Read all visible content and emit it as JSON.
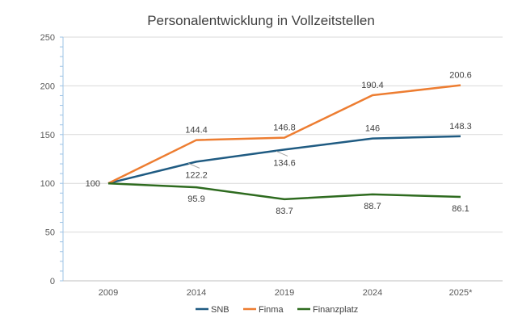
{
  "chart_data": {
    "type": "line",
    "title": "Personalentwicklung in Vollzeitstellen",
    "categories": [
      "2009",
      "2014",
      "2019",
      "2024",
      "2025*"
    ],
    "ylim": [
      0,
      250
    ],
    "yticks": [
      0,
      50,
      100,
      150,
      200,
      250
    ],
    "grid": true,
    "legend_position": "bottom",
    "series": [
      {
        "name": "SNB",
        "color": "#1f5b82",
        "values": [
          100,
          122.2,
          134.6,
          146,
          148.3
        ],
        "labels": [
          "",
          "122.2",
          "134.6",
          "146",
          "148.3"
        ]
      },
      {
        "name": "Finma",
        "color": "#ed7d31",
        "values": [
          100,
          144.4,
          146.8,
          190.4,
          200.6
        ],
        "labels": [
          "",
          "144.4",
          "146.8",
          "190.4",
          "200.6"
        ]
      },
      {
        "name": "Finanzplatz",
        "color": "#2e6b1f",
        "values": [
          100,
          95.9,
          83.7,
          88.7,
          86.1
        ],
        "labels": [
          "100",
          "95.9",
          "83.7",
          "88.7",
          "86.1"
        ]
      }
    ]
  }
}
